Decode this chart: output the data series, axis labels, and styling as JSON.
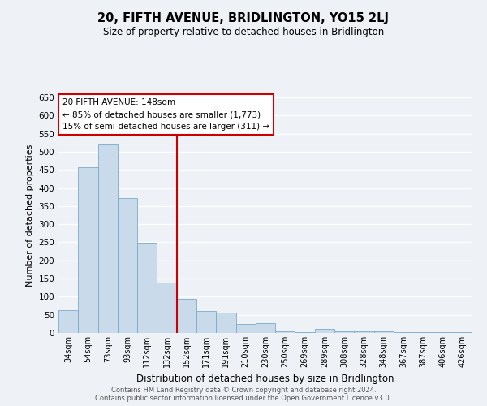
{
  "title": "20, FIFTH AVENUE, BRIDLINGTON, YO15 2LJ",
  "subtitle": "Size of property relative to detached houses in Bridlington",
  "xlabel": "Distribution of detached houses by size in Bridlington",
  "ylabel": "Number of detached properties",
  "bin_labels": [
    "34sqm",
    "54sqm",
    "73sqm",
    "93sqm",
    "112sqm",
    "132sqm",
    "152sqm",
    "171sqm",
    "191sqm",
    "210sqm",
    "230sqm",
    "250sqm",
    "269sqm",
    "289sqm",
    "308sqm",
    "328sqm",
    "348sqm",
    "367sqm",
    "387sqm",
    "406sqm",
    "426sqm"
  ],
  "bar_heights": [
    62,
    457,
    522,
    371,
    249,
    140,
    95,
    61,
    57,
    25,
    27,
    5,
    3,
    12,
    4,
    4,
    5,
    2,
    2,
    2,
    2
  ],
  "bar_color": "#c9daea",
  "bar_edge_color": "#7aaac8",
  "ylim": [
    0,
    650
  ],
  "yticks": [
    0,
    50,
    100,
    150,
    200,
    250,
    300,
    350,
    400,
    450,
    500,
    550,
    600,
    650
  ],
  "property_bin_index": 5.5,
  "vline_color": "#cc0000",
  "annotation_title": "20 FIFTH AVENUE: 148sqm",
  "annotation_line1": "← 85% of detached houses are smaller (1,773)",
  "annotation_line2": "15% of semi-detached houses are larger (311) →",
  "annotation_box_color": "#ffffff",
  "annotation_box_edge": "#cc0000",
  "footnote1": "Contains HM Land Registry data © Crown copyright and database right 2024.",
  "footnote2": "Contains public sector information licensed under the Open Government Licence v3.0.",
  "background_color": "#eef2f7",
  "grid_color": "#ffffff"
}
